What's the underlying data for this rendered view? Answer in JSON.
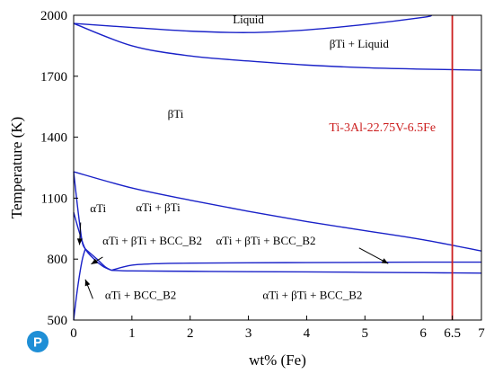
{
  "chart_data": {
    "type": "line",
    "title": "",
    "xlabel": "wt% (Fe)",
    "ylabel": "Temperature (K)",
    "xlim": [
      0,
      7
    ],
    "ylim": [
      500,
      2000
    ],
    "x_ticks": [
      0,
      1,
      2,
      3,
      4,
      5,
      6,
      6.5,
      7
    ],
    "y_ticks": [
      500,
      800,
      1100,
      1400,
      1700,
      2000
    ],
    "grid": false,
    "line_color": "#1a22c8",
    "series": [
      {
        "points": [
          [
            0,
            1960
          ],
          [
            1,
            1940
          ],
          [
            2,
            1922
          ],
          [
            3,
            1915
          ],
          [
            4,
            1928
          ],
          [
            5,
            1955
          ],
          [
            6,
            1990
          ],
          [
            6.15,
            2000
          ]
        ]
      },
      {
        "points": [
          [
            0,
            1960
          ],
          [
            1,
            1850
          ],
          [
            2,
            1800
          ],
          [
            3,
            1775
          ],
          [
            4,
            1755
          ],
          [
            5,
            1742
          ],
          [
            6,
            1735
          ],
          [
            7,
            1730
          ]
        ]
      },
      {
        "points": [
          [
            0,
            1230
          ],
          [
            1,
            1150
          ],
          [
            2,
            1090
          ],
          [
            3,
            1035
          ],
          [
            4,
            985
          ],
          [
            5,
            940
          ],
          [
            6,
            895
          ],
          [
            7,
            840
          ]
        ]
      },
      {
        "points": [
          [
            0,
            1230
          ],
          [
            0.05,
            1100
          ],
          [
            0.1,
            980
          ],
          [
            0.15,
            880
          ],
          [
            0.2,
            850
          ]
        ]
      },
      {
        "points": [
          [
            0,
            500
          ],
          [
            0.05,
            620
          ],
          [
            0.1,
            720
          ],
          [
            0.15,
            800
          ],
          [
            0.2,
            850
          ]
        ]
      },
      {
        "points": [
          [
            0,
            1030
          ],
          [
            0.1,
            930
          ],
          [
            0.2,
            850
          ],
          [
            0.35,
            800
          ],
          [
            0.5,
            765
          ],
          [
            0.65,
            745
          ]
        ]
      },
      {
        "points": [
          [
            0.2,
            850
          ],
          [
            0.4,
            800
          ],
          [
            0.55,
            760
          ],
          [
            0.65,
            745
          ]
        ]
      },
      {
        "points": [
          [
            0.65,
            745
          ],
          [
            1.0,
            770
          ],
          [
            1.5,
            778
          ],
          [
            2,
            780
          ],
          [
            3,
            782
          ],
          [
            4,
            783
          ],
          [
            5,
            784
          ],
          [
            6,
            785
          ],
          [
            7,
            785
          ]
        ]
      },
      {
        "points": [
          [
            0.65,
            745
          ],
          [
            1,
            742
          ],
          [
            2,
            740
          ],
          [
            3,
            738
          ],
          [
            4,
            737
          ],
          [
            5,
            735
          ],
          [
            6,
            733
          ],
          [
            7,
            731
          ]
        ]
      }
    ],
    "vertical_line": {
      "x": 6.5,
      "color": "#cc1e1e",
      "label": "Ti-3Al-22.75V-6.5Fe"
    },
    "region_labels": [
      {
        "text": "Liquid",
        "x": 3.0,
        "y": 1960
      },
      {
        "text": "βTi + Liquid",
        "x": 4.9,
        "y": 1840
      },
      {
        "text": "βTi",
        "x": 1.75,
        "y": 1495
      },
      {
        "text": "αTi",
        "x": 0.42,
        "y": 1030
      },
      {
        "text": "αTi + βTi",
        "x": 1.45,
        "y": 1035
      },
      {
        "text": "αTi + βTi + BCC_B2",
        "x": 1.35,
        "y": 872
      },
      {
        "text": "αTi + βTi + BCC_B2",
        "x": 3.3,
        "y": 872
      },
      {
        "text": "αTi + BCC_B2",
        "x": 1.15,
        "y": 605
      },
      {
        "text": "αTi + βTi + BCC_B2",
        "x": 4.1,
        "y": 605
      }
    ],
    "annotation_arrows": [
      {
        "from": [
          0.12,
          980
        ],
        "to": [
          0.1,
          870
        ]
      },
      {
        "from": [
          0.5,
          810
        ],
        "to": [
          0.3,
          775
        ]
      },
      {
        "from": [
          0.33,
          605
        ],
        "to": [
          0.2,
          700
        ]
      },
      {
        "from": [
          4.9,
          855
        ],
        "to": [
          5.4,
          778
        ]
      }
    ]
  },
  "logo": {
    "letter": "P",
    "color": "#1f8fd6"
  }
}
